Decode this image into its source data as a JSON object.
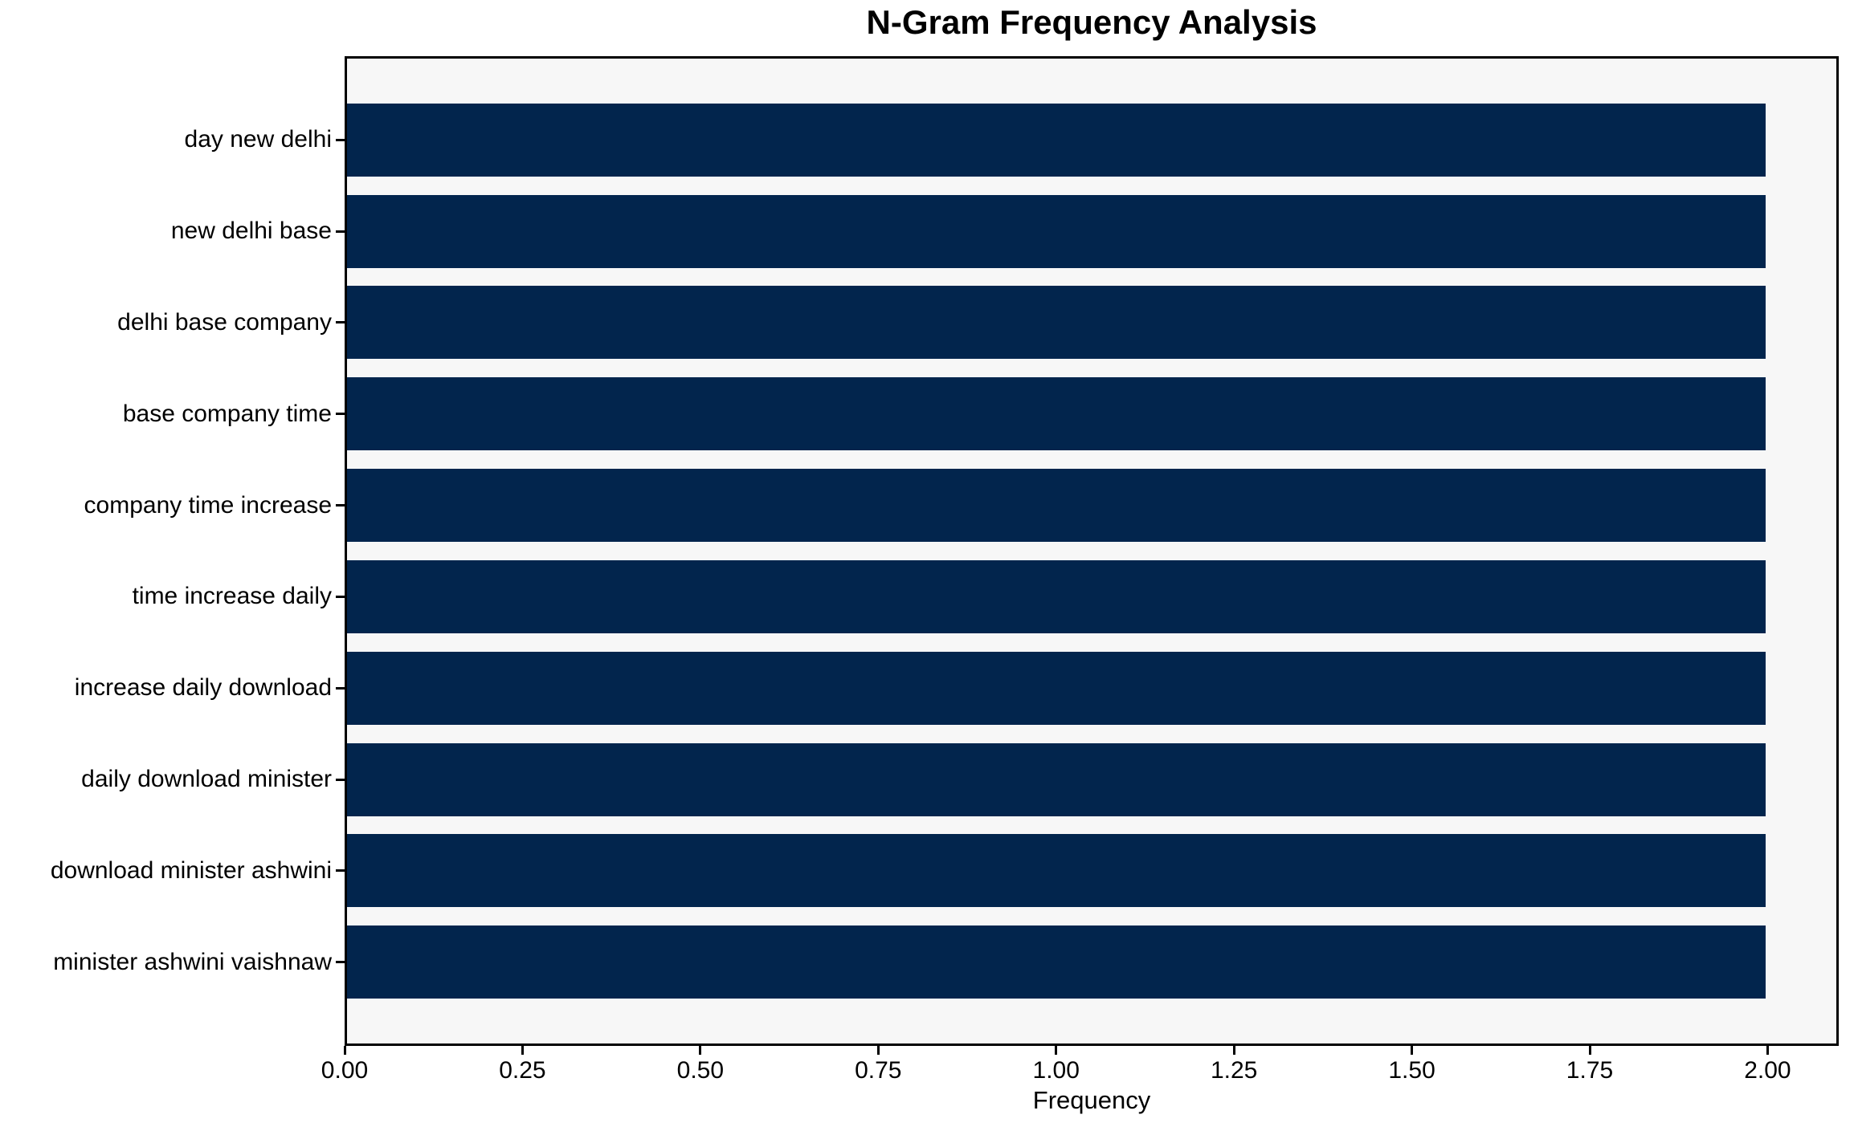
{
  "chart_data": {
    "type": "bar",
    "orientation": "horizontal",
    "title": "N-Gram Frequency Analysis",
    "xlabel": "Frequency",
    "ylabel": "",
    "categories": [
      "day new delhi",
      "new delhi base",
      "delhi base company",
      "base company time",
      "company time increase",
      "time increase daily",
      "increase daily download",
      "daily download minister",
      "download minister ashwini",
      "minister ashwini vaishnaw"
    ],
    "values": [
      2,
      2,
      2,
      2,
      2,
      2,
      2,
      2,
      2,
      2
    ],
    "xlim": [
      0,
      2.1
    ],
    "xticks": [
      "0.00",
      "0.25",
      "0.50",
      "0.75",
      "1.00",
      "1.25",
      "1.50",
      "1.75",
      "2.00"
    ],
    "xtick_values": [
      0,
      0.25,
      0.5,
      0.75,
      1.0,
      1.25,
      1.5,
      1.75,
      2.0
    ],
    "grid": false,
    "legend": null,
    "colors": {
      "bar": "#02254D",
      "plot_background": "#f7f7f7",
      "figure_background": "#ffffff",
      "spine": "#000000",
      "text": "#000000"
    }
  }
}
